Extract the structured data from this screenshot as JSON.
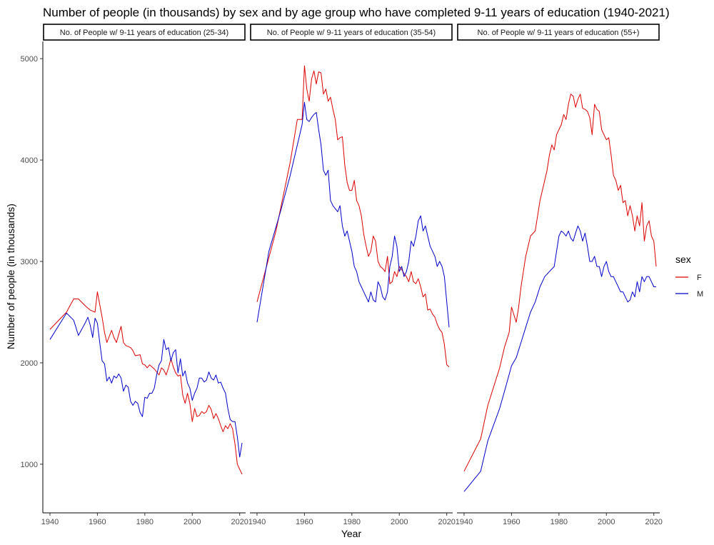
{
  "chart_data": {
    "type": "line",
    "title": "Number of people (in thousands) by sex and by age group who have completed 9-11 years of education (1940-2021)",
    "xlabel": "Year",
    "ylabel": "Number of people (in thousands)",
    "xlim": [
      1937,
      2022.5
    ],
    "ylim": [
      520,
      5170
    ],
    "x_ticks": [
      1940,
      1960,
      1980,
      2000,
      2020
    ],
    "y_ticks": [
      1000,
      2000,
      3000,
      4000,
      5000
    ],
    "grid": false,
    "legend": {
      "title": "sex",
      "placement": "right",
      "entries": [
        {
          "label": "F",
          "color": "#dd0000"
        },
        {
          "label": "M",
          "color": "#0000cc"
        }
      ]
    },
    "panels": [
      {
        "label": "No. of People w/ 9-11 years of education (25-34)",
        "series": [
          {
            "name": "F",
            "color": "#dd0000",
            "x": [
              1940,
              1947,
              1950,
              1952,
              1955,
              1957,
              1959,
              1960,
              1962,
              1963,
              1964,
              1966,
              1967,
              1968,
              1969,
              1970,
              1971,
              1972,
              1974,
              1975,
              1976,
              1978,
              1979,
              1980,
              1981,
              1982,
              1984,
              1986,
              1987,
              1988,
              1989,
              1990,
              1991,
              1992,
              1993,
              1994,
              1995,
              1996,
              1997,
              1998,
              1999,
              2000,
              2001,
              2002,
              2003,
              2004,
              2005,
              2006,
              2007,
              2008,
              2009,
              2010,
              2011,
              2012,
              2013,
              2014,
              2015,
              2016,
              2017,
              2018,
              2019,
              2020,
              2021
            ],
            "y": [
              2330,
              2500,
              2630,
              2630,
              2560,
              2520,
              2500,
              2700,
              2450,
              2300,
              2200,
              2320,
              2250,
              2200,
              2280,
              2360,
              2200,
              2170,
              2150,
              2120,
              2070,
              2080,
              1990,
              1980,
              1950,
              1980,
              1940,
              1880,
              1950,
              1930,
              1880,
              1950,
              2040,
              1960,
              1900,
              1870,
              1880,
              1680,
              1600,
              1700,
              1600,
              1420,
              1550,
              1470,
              1480,
              1520,
              1500,
              1520,
              1580,
              1540,
              1450,
              1500,
              1450,
              1380,
              1320,
              1380,
              1350,
              1400,
              1350,
              1200,
              1000,
              950,
              900
            ]
          },
          {
            "name": "M",
            "color": "#0000cc",
            "x": [
              1940,
              1944,
              1947,
              1950,
              1952,
              1955,
              1956,
              1957,
              1958,
              1959,
              1960,
              1961,
              1962,
              1963,
              1964,
              1965,
              1966,
              1967,
              1968,
              1969,
              1970,
              1971,
              1972,
              1973,
              1974,
              1975,
              1976,
              1977,
              1978,
              1979,
              1980,
              1981,
              1982,
              1983,
              1984,
              1985,
              1986,
              1987,
              1988,
              1989,
              1990,
              1991,
              1992,
              1993,
              1994,
              1995,
              1996,
              1997,
              1998,
              1999,
              2000,
              2001,
              2002,
              2003,
              2004,
              2005,
              2006,
              2007,
              2008,
              2009,
              2010,
              2011,
              2012,
              2013,
              2014,
              2015,
              2016,
              2017,
              2018,
              2019,
              2020,
              2021
            ],
            "y": [
              2230,
              2380,
              2490,
              2420,
              2270,
              2400,
              2450,
              2370,
              2250,
              2440,
              2390,
              2200,
              2020,
              1990,
              1820,
              1860,
              1800,
              1870,
              1850,
              1890,
              1850,
              1720,
              1780,
              1760,
              1620,
              1580,
              1620,
              1600,
              1510,
              1470,
              1660,
              1650,
              1700,
              1700,
              1750,
              1880,
              1980,
              2020,
              2230,
              2130,
              2150,
              2020,
              2100,
              2130,
              1900,
              2040,
              1870,
              1920,
              1800,
              1750,
              1630,
              1700,
              1750,
              1850,
              1850,
              1810,
              1830,
              1910,
              1850,
              1830,
              1880,
              1800,
              1810,
              1750,
              1700,
              1550,
              1440,
              1420,
              1420,
              1270,
              1070,
              1210
            ]
          }
        ]
      },
      {
        "label": "No. of People w/ 9-11 years of education (35-54)",
        "series": [
          {
            "name": "F",
            "color": "#dd0000",
            "x": [
              1940,
              1948,
              1954,
              1957,
              1959,
              1960,
              1961,
              1962,
              1963,
              1964,
              1965,
              1966,
              1967,
              1968,
              1969,
              1970,
              1971,
              1972,
              1973,
              1974,
              1975,
              1976,
              1977,
              1978,
              1979,
              1980,
              1981,
              1982,
              1983,
              1984,
              1985,
              1986,
              1987,
              1988,
              1989,
              1990,
              1991,
              1992,
              1993,
              1994,
              1995,
              1996,
              1997,
              1998,
              1999,
              2000,
              2001,
              2002,
              2003,
              2004,
              2005,
              2006,
              2007,
              2008,
              2009,
              2010,
              2011,
              2012,
              2013,
              2014,
              2015,
              2016,
              2017,
              2018,
              2019,
              2020,
              2021
            ],
            "y": [
              2600,
              3300,
              3980,
              4400,
              4400,
              4930,
              4700,
              4580,
              4800,
              4880,
              4750,
              4870,
              4860,
              4650,
              4700,
              4580,
              4620,
              4500,
              4400,
              4200,
              4220,
              4230,
              3950,
              3780,
              3700,
              3700,
              3800,
              3600,
              3550,
              3450,
              3270,
              3150,
              3050,
              3100,
              3250,
              3200,
              3000,
              2950,
              2930,
              2900,
              3050,
              2780,
              2800,
              2900,
              2850,
              2950,
              2920,
              2880,
              2850,
              2800,
              2900,
              2800,
              2780,
              2830,
              2750,
              2650,
              2680,
              2520,
              2530,
              2480,
              2450,
              2380,
              2330,
              2300,
              2180,
              1980,
              1960
            ]
          },
          {
            "name": "M",
            "color": "#0000cc",
            "x": [
              1940,
              1945,
              1950,
              1954,
              1956,
              1958,
              1959,
              1960,
              1961,
              1962,
              1963,
              1964,
              1965,
              1966,
              1967,
              1968,
              1969,
              1970,
              1971,
              1972,
              1973,
              1974,
              1975,
              1976,
              1977,
              1978,
              1979,
              1980,
              1981,
              1982,
              1983,
              1984,
              1985,
              1986,
              1987,
              1988,
              1989,
              1990,
              1991,
              1992,
              1993,
              1994,
              1995,
              1996,
              1997,
              1998,
              1999,
              2000,
              2001,
              2002,
              2003,
              2004,
              2005,
              2006,
              2007,
              2008,
              2009,
              2010,
              2011,
              2012,
              2013,
              2014,
              2015,
              2016,
              2017,
              2018,
              2019,
              2020,
              2021
            ],
            "y": [
              2400,
              3100,
              3500,
              3850,
              4050,
              4250,
              4350,
              4570,
              4400,
              4380,
              4420,
              4450,
              4470,
              4300,
              4150,
              3900,
              3850,
              3900,
              3600,
              3550,
              3520,
              3490,
              3550,
              3350,
              3250,
              3300,
              3200,
              3100,
              2950,
              2900,
              2800,
              2750,
              2700,
              2650,
              2600,
              2700,
              2620,
              2600,
              2800,
              2750,
              2650,
              2620,
              2700,
              2950,
              3050,
              3250,
              3150,
              2900,
              2950,
              2850,
              2900,
              3000,
              3200,
              3150,
              3250,
              3400,
              3450,
              3300,
              3350,
              3250,
              3150,
              3100,
              3050,
              2950,
              3000,
              2950,
              2850,
              2600,
              2350
            ]
          }
        ]
      },
      {
        "label": "No. of People w/ 9-11 years of education (55+)",
        "series": [
          {
            "name": "F",
            "color": "#dd0000",
            "x": [
              1940,
              1947,
              1950,
              1955,
              1957,
              1959,
              1960,
              1962,
              1963,
              1964,
              1966,
              1968,
              1970,
              1972,
              1974,
              1975,
              1976,
              1977,
              1978,
              1979,
              1980,
              1981,
              1982,
              1983,
              1984,
              1985,
              1986,
              1987,
              1988,
              1989,
              1990,
              1991,
              1992,
              1993,
              1994,
              1995,
              1996,
              1997,
              1998,
              1999,
              2000,
              2001,
              2002,
              2003,
              2004,
              2005,
              2006,
              2007,
              2008,
              2009,
              2010,
              2011,
              2012,
              2013,
              2014,
              2015,
              2016,
              2017,
              2018,
              2019,
              2020,
              2021
            ],
            "y": [
              930,
              1250,
              1580,
              1950,
              2150,
              2300,
              2550,
              2400,
              2550,
              2750,
              3050,
              3250,
              3300,
              3600,
              3800,
              3900,
              4050,
              4150,
              4100,
              4250,
              4300,
              4350,
              4450,
              4400,
              4550,
              4650,
              4630,
              4520,
              4600,
              4650,
              4510,
              4500,
              4480,
              4420,
              4250,
              4550,
              4500,
              4480,
              4300,
              4250,
              4200,
              4220,
              4050,
              3850,
              3800,
              3700,
              3750,
              3580,
              3600,
              3450,
              3550,
              3450,
              3300,
              3450,
              3350,
              3580,
              3200,
              3350,
              3400,
              3250,
              3200,
              2950
            ]
          },
          {
            "name": "M",
            "color": "#0000cc",
            "x": [
              1940,
              1947,
              1950,
              1955,
              1958,
              1960,
              1962,
              1964,
              1966,
              1968,
              1970,
              1972,
              1974,
              1976,
              1978,
              1980,
              1981,
              1982,
              1983,
              1984,
              1985,
              1986,
              1987,
              1988,
              1989,
              1990,
              1991,
              1992,
              1993,
              1994,
              1995,
              1996,
              1997,
              1998,
              1999,
              2000,
              2001,
              2002,
              2003,
              2004,
              2005,
              2006,
              2007,
              2008,
              2009,
              2010,
              2011,
              2012,
              2013,
              2014,
              2015,
              2016,
              2017,
              2018,
              2019,
              2020,
              2021
            ],
            "y": [
              730,
              930,
              1230,
              1550,
              1800,
              1970,
              2050,
              2200,
              2350,
              2500,
              2600,
              2750,
              2850,
              2900,
              2950,
              3250,
              3300,
              3280,
              3250,
              3300,
              3230,
              3200,
              3280,
              3350,
              3300,
              3200,
              3280,
              3150,
              3000,
              3000,
              3050,
              2950,
              2950,
              2850,
              2950,
              3000,
              2900,
              2850,
              2850,
              2800,
              2750,
              2700,
              2700,
              2650,
              2600,
              2620,
              2700,
              2650,
              2800,
              2700,
              2850,
              2800,
              2850,
              2850,
              2800,
              2750,
              2750
            ]
          }
        ]
      }
    ]
  }
}
